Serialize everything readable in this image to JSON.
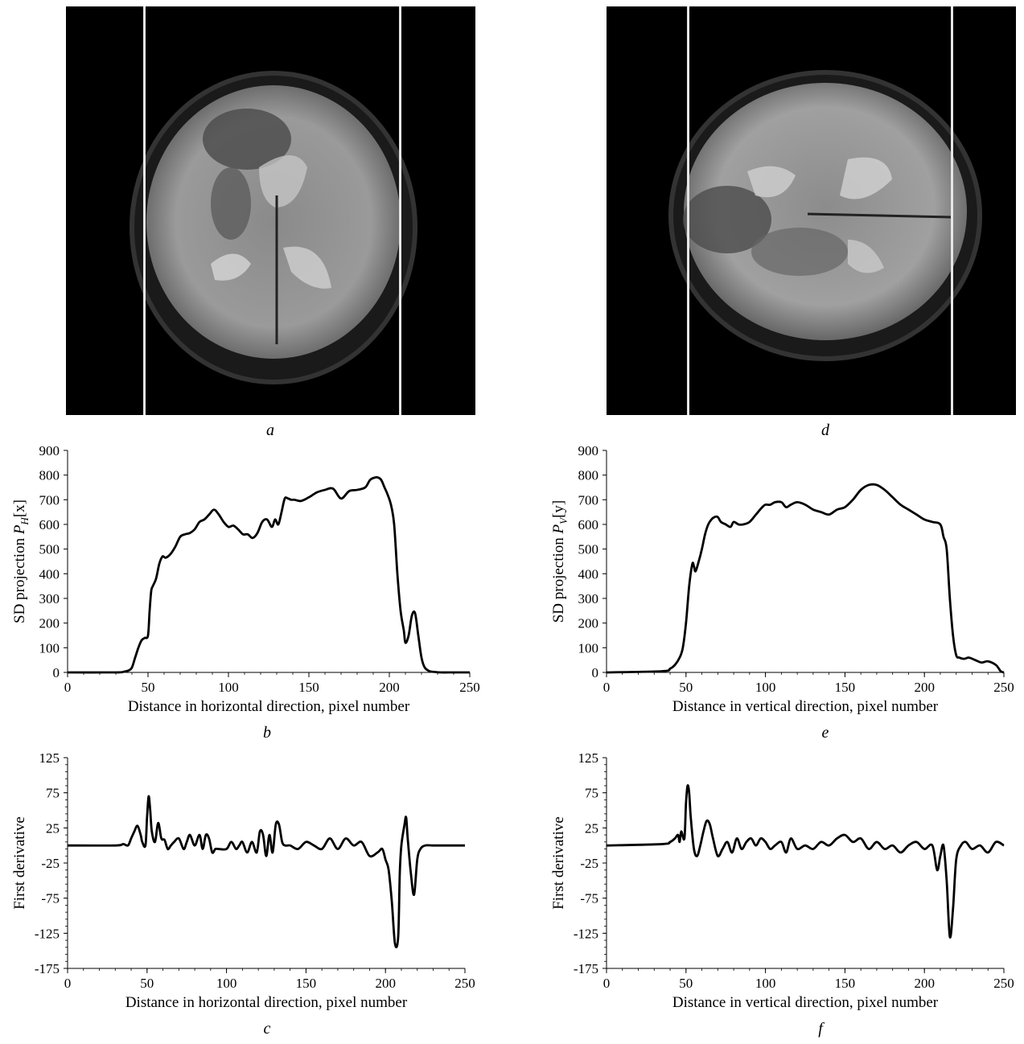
{
  "captions": {
    "a": "a",
    "b": "b",
    "c": "c",
    "d": "d",
    "e": "e",
    "f": "f"
  },
  "images": {
    "a": {
      "description_icon": "mri-axial-brain-scan-icon"
    },
    "d": {
      "description_icon": "mri-axial-brain-scan-icon"
    }
  },
  "chart_data": [
    {
      "id": "b",
      "type": "line",
      "xlabel": "Distance in horizontal direction, pixel number",
      "ylabel_main": "SD projection ",
      "ylabel_sym": "P",
      "ylabel_sub": "H",
      "ylabel_arg": "[x]",
      "xlim": [
        0,
        250
      ],
      "ylim": [
        0,
        900
      ],
      "xticks": [
        "0",
        "50",
        "100",
        "150",
        "200",
        "250"
      ],
      "yticks": [
        "0",
        "100",
        "200",
        "300",
        "400",
        "500",
        "600",
        "700",
        "800",
        "900"
      ],
      "x": [
        0,
        30,
        35,
        38,
        40,
        42,
        44,
        46,
        48,
        50,
        51,
        52,
        53,
        55,
        57,
        59,
        61,
        64,
        67,
        70,
        73,
        76,
        79,
        82,
        85,
        88,
        91,
        94,
        97,
        100,
        103,
        106,
        109,
        112,
        115,
        118,
        121,
        124,
        127,
        129,
        131,
        133,
        135,
        137,
        139,
        141,
        145,
        150,
        155,
        160,
        165,
        170,
        175,
        180,
        185,
        188,
        191,
        193,
        195,
        197,
        199,
        201,
        203,
        205,
        207,
        209,
        210,
        212,
        214,
        216,
        218,
        220,
        222,
        225,
        228,
        232,
        240,
        250
      ],
      "y": [
        0,
        0,
        3,
        8,
        20,
        60,
        100,
        130,
        140,
        150,
        250,
        330,
        350,
        380,
        440,
        470,
        465,
        480,
        510,
        550,
        560,
        565,
        580,
        610,
        620,
        640,
        660,
        640,
        610,
        590,
        595,
        580,
        560,
        560,
        545,
        565,
        610,
        620,
        590,
        620,
        600,
        650,
        705,
        705,
        700,
        700,
        695,
        710,
        730,
        740,
        745,
        705,
        735,
        740,
        750,
        780,
        790,
        790,
        780,
        750,
        720,
        680,
        600,
        400,
        250,
        170,
        120,
        150,
        230,
        240,
        150,
        60,
        20,
        5,
        2,
        0,
        0,
        0
      ]
    },
    {
      "id": "c",
      "type": "line",
      "xlabel": "Distance in horizontal direction, pixel number",
      "ylabel": "First derivative",
      "xlim": [
        0,
        250
      ],
      "ylim": [
        -175,
        125
      ],
      "xticks": [
        "0",
        "50",
        "100",
        "150",
        "200",
        "250"
      ],
      "yticks": [
        "125",
        "75",
        "25",
        "-25",
        "-75",
        "-125",
        "-175"
      ],
      "x": [
        0,
        30,
        35,
        38,
        40,
        42,
        44,
        46,
        47,
        49,
        50,
        51,
        52,
        53,
        55,
        57,
        59,
        61,
        63,
        65,
        67,
        70,
        73,
        75,
        77,
        80,
        83,
        85,
        87,
        89,
        91,
        93,
        95,
        100,
        103,
        106,
        108,
        110,
        113,
        116,
        119,
        121,
        123,
        125,
        127,
        129,
        131,
        133,
        135,
        137,
        140,
        145,
        150,
        155,
        160,
        165,
        170,
        175,
        180,
        185,
        190,
        195,
        198,
        200,
        202,
        204,
        206,
        208,
        209,
        210,
        212,
        213,
        214,
        216,
        218,
        220,
        222,
        225,
        230,
        240,
        250
      ],
      "y": [
        0,
        0,
        2,
        0,
        10,
        20,
        28,
        15,
        5,
        0,
        40,
        70,
        50,
        20,
        5,
        32,
        10,
        8,
        -5,
        0,
        5,
        10,
        -5,
        5,
        15,
        0,
        15,
        -5,
        15,
        10,
        -10,
        -5,
        -5,
        -5,
        5,
        -5,
        0,
        5,
        -10,
        5,
        -10,
        20,
        15,
        -15,
        15,
        -10,
        30,
        30,
        5,
        0,
        0,
        -5,
        5,
        0,
        -5,
        10,
        -5,
        10,
        0,
        5,
        -15,
        -10,
        -5,
        -20,
        -35,
        -80,
        -140,
        -130,
        -40,
        0,
        30,
        40,
        10,
        -40,
        -70,
        -20,
        -5,
        0,
        0,
        0,
        0
      ]
    },
    {
      "id": "e",
      "type": "line",
      "xlabel": "Distance in vertical direction, pixel number",
      "ylabel_main": "SD projection ",
      "ylabel_sym": "P",
      "ylabel_sub": "V",
      "ylabel_arg": "[y]",
      "xlim": [
        0,
        250
      ],
      "ylim": [
        0,
        900
      ],
      "xticks": [
        "0",
        "50",
        "100",
        "150",
        "200",
        "250"
      ],
      "yticks": [
        "0",
        "100",
        "200",
        "300",
        "400",
        "500",
        "600",
        "700",
        "800",
        "900"
      ],
      "x": [
        0,
        35,
        40,
        43,
        46,
        48,
        50,
        52,
        54,
        55,
        56,
        58,
        60,
        62,
        64,
        66,
        68,
        70,
        72,
        75,
        78,
        80,
        83,
        86,
        90,
        94,
        98,
        100,
        103,
        106,
        110,
        113,
        116,
        120,
        125,
        130,
        135,
        140,
        145,
        150,
        155,
        160,
        165,
        170,
        175,
        180,
        185,
        190,
        195,
        200,
        205,
        210,
        212,
        214,
        216,
        218,
        220,
        222,
        225,
        228,
        232,
        236,
        240,
        245,
        248,
        250
      ],
      "y": [
        0,
        5,
        15,
        30,
        60,
        100,
        200,
        350,
        440,
        430,
        410,
        450,
        500,
        560,
        600,
        620,
        630,
        630,
        610,
        600,
        590,
        610,
        600,
        600,
        610,
        640,
        670,
        680,
        680,
        690,
        690,
        670,
        680,
        690,
        680,
        660,
        650,
        640,
        660,
        670,
        700,
        740,
        760,
        760,
        740,
        710,
        680,
        660,
        640,
        620,
        610,
        600,
        550,
        500,
        300,
        150,
        70,
        60,
        55,
        60,
        50,
        40,
        45,
        30,
        5,
        0
      ]
    },
    {
      "id": "f",
      "type": "line",
      "xlabel": "Distance in vertical direction, pixel number",
      "ylabel": "First derivative",
      "xlim": [
        0,
        250
      ],
      "ylim": [
        -175,
        125
      ],
      "xticks": [
        "0",
        "50",
        "100",
        "150",
        "200",
        "250"
      ],
      "yticks": [
        "125",
        "75",
        "25",
        "-25",
        "-75",
        "-125",
        "-175"
      ],
      "x": [
        0,
        35,
        40,
        43,
        45,
        46,
        47,
        49,
        50,
        51,
        52,
        53,
        55,
        57,
        59,
        61,
        63,
        65,
        67,
        70,
        73,
        76,
        79,
        82,
        85,
        88,
        91,
        94,
        97,
        100,
        103,
        106,
        110,
        113,
        116,
        120,
        125,
        130,
        135,
        140,
        145,
        150,
        155,
        160,
        165,
        170,
        175,
        180,
        185,
        190,
        195,
        200,
        205,
        208,
        210,
        212,
        214,
        216,
        218,
        220,
        223,
        226,
        230,
        235,
        240,
        245,
        250
      ],
      "y": [
        0,
        2,
        5,
        10,
        15,
        5,
        20,
        10,
        60,
        85,
        75,
        40,
        -5,
        -15,
        0,
        20,
        35,
        30,
        10,
        -15,
        -5,
        5,
        -10,
        10,
        -5,
        5,
        10,
        0,
        10,
        5,
        -5,
        0,
        5,
        -10,
        10,
        -5,
        0,
        -5,
        5,
        0,
        10,
        15,
        5,
        10,
        -5,
        5,
        -5,
        0,
        -10,
        0,
        5,
        -5,
        0,
        -35,
        -15,
        0,
        -50,
        -130,
        -90,
        -20,
        0,
        5,
        -5,
        0,
        -10,
        5,
        0
      ]
    }
  ]
}
